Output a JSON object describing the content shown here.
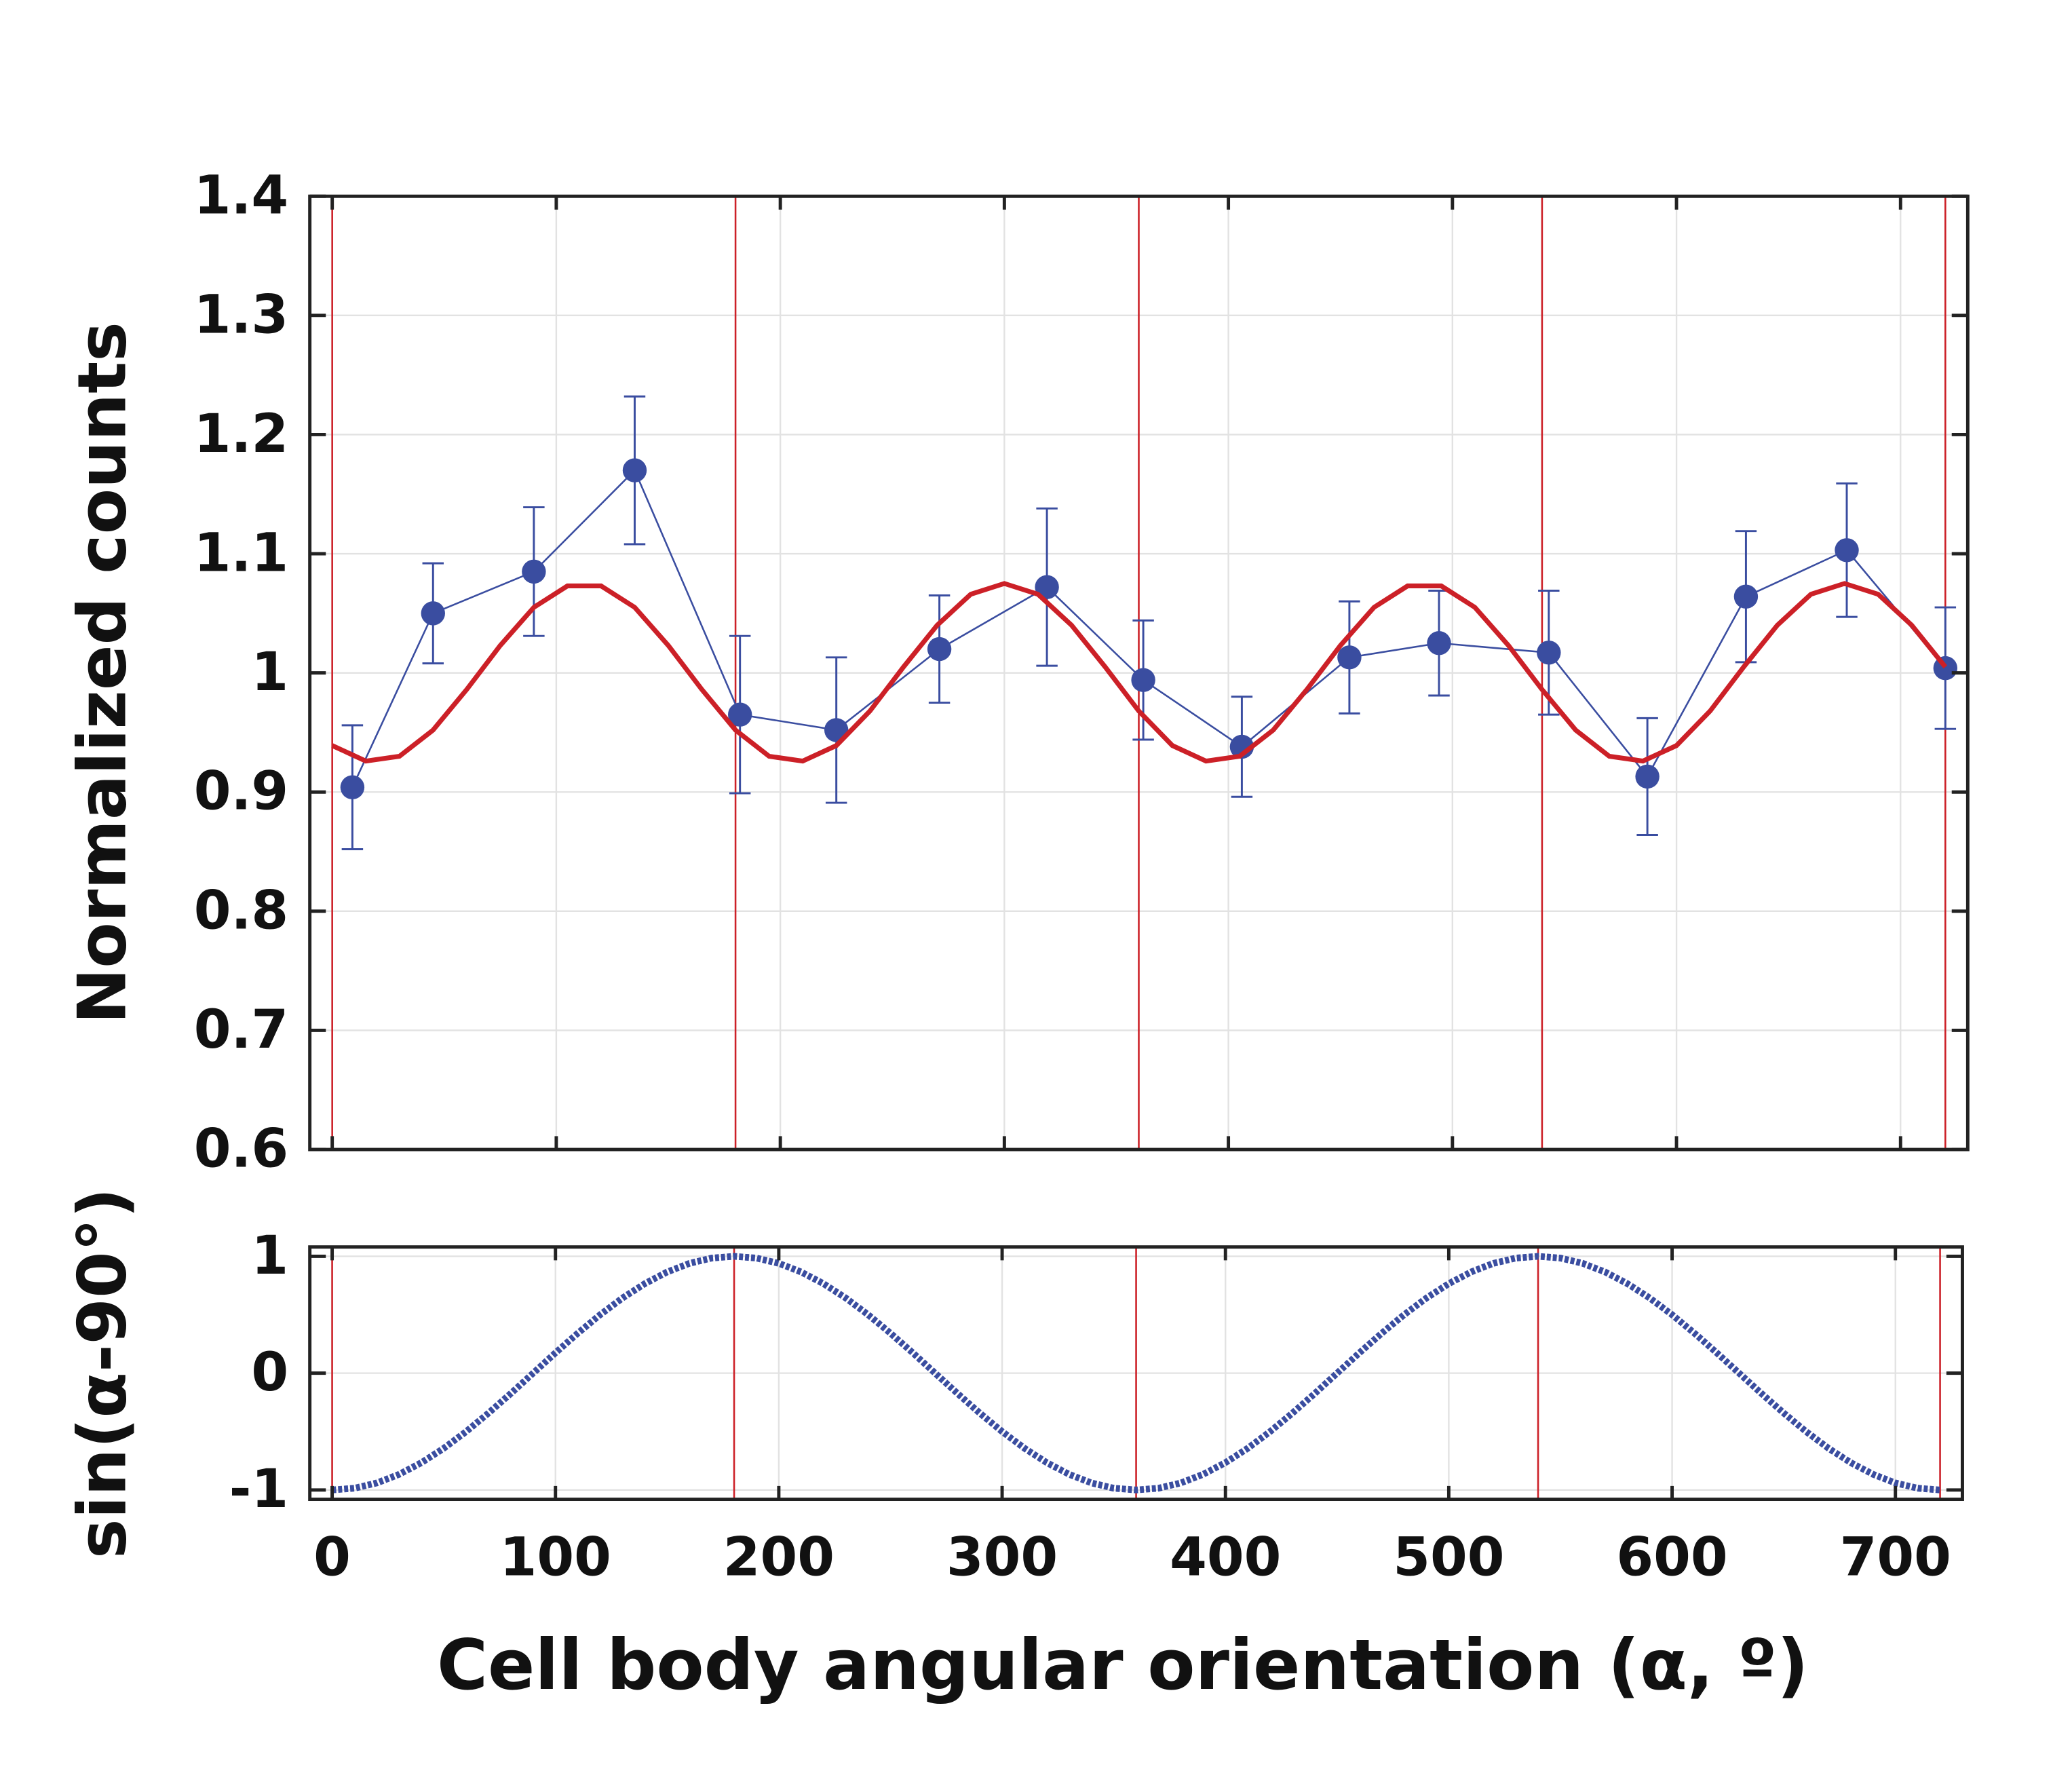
{
  "chart_data": [
    {
      "type": "line",
      "ylabel": "Normalized counts",
      "xlim": [
        -10,
        730
      ],
      "ylim": [
        0.6,
        1.4
      ],
      "xticks": [
        0,
        100,
        200,
        300,
        400,
        500,
        600,
        700
      ],
      "xtick_labels": false,
      "yticks": [
        0.6,
        0.7,
        0.8,
        0.9,
        1,
        1.1,
        1.2,
        1.3,
        1.4
      ],
      "grid": true,
      "vlines": [
        0,
        180,
        360,
        540,
        720
      ],
      "vline_color": "#cc2027",
      "series": [
        {
          "color": "#3a4da0",
          "marker": true,
          "x": [
            9,
            45,
            90,
            135,
            182,
            225,
            271,
            319,
            362,
            406,
            454,
            494,
            543,
            587,
            631,
            676,
            720
          ],
          "values": [
            0.904,
            1.05,
            1.085,
            1.17,
            0.965,
            0.952,
            1.02,
            1.072,
            0.994,
            0.938,
            1.013,
            1.025,
            1.017,
            0.913,
            1.064,
            1.103,
            1.004
          ],
          "errors": [
            0.052,
            0.042,
            0.054,
            0.062,
            0.066,
            0.061,
            0.045,
            0.066,
            0.05,
            0.042,
            0.047,
            0.044,
            0.052,
            0.049,
            0.055,
            0.056,
            0.051
          ]
        },
        {
          "color": "#cc2027",
          "marker": false,
          "x": [
            0,
            15,
            30,
            45,
            60,
            75,
            90,
            105,
            120,
            135,
            150,
            165,
            180,
            195,
            210,
            225,
            240,
            255,
            270,
            285,
            300,
            315,
            330,
            345,
            360,
            375,
            390,
            405,
            420,
            435,
            450,
            465,
            480,
            495,
            510,
            525,
            540,
            555,
            570,
            585,
            600,
            615,
            630,
            645,
            660,
            675,
            690,
            705,
            720
          ],
          "values": [
            0.939,
            0.926,
            0.93,
            0.952,
            0.986,
            1.023,
            1.055,
            1.073,
            1.073,
            1.055,
            1.023,
            0.986,
            0.952,
            0.93,
            0.926,
            0.939,
            0.968,
            1.005,
            1.04,
            1.066,
            1.075,
            1.066,
            1.04,
            1.005,
            0.968,
            0.939,
            0.926,
            0.93,
            0.952,
            0.986,
            1.023,
            1.055,
            1.073,
            1.073,
            1.055,
            1.023,
            0.986,
            0.952,
            0.93,
            0.926,
            0.939,
            0.968,
            1.005,
            1.04,
            1.066,
            1.075,
            1.066,
            1.04,
            1.005
          ]
        }
      ]
    },
    {
      "type": "line",
      "xlabel": "Cell body angular orientation (α, º)",
      "ylabel": "sin(α-90°)",
      "xlim": [
        -10,
        730
      ],
      "ylim": [
        -1.08,
        1.08
      ],
      "xticks": [
        0,
        100,
        200,
        300,
        400,
        500,
        600,
        700
      ],
      "xtick_labels": true,
      "yticks": [
        -1,
        0,
        1
      ],
      "grid": true,
      "vlines": [
        0,
        180,
        360,
        540,
        720
      ],
      "vline_color": "#cc2027",
      "series": [
        {
          "color": "#3a4da0",
          "marker": false,
          "dotted": true,
          "x": [
            0,
            10,
            20,
            30,
            40,
            50,
            60,
            70,
            80,
            90,
            100,
            110,
            120,
            130,
            140,
            150,
            160,
            170,
            180,
            190,
            200,
            210,
            220,
            230,
            240,
            250,
            260,
            270,
            280,
            290,
            300,
            310,
            320,
            330,
            340,
            350,
            360,
            370,
            380,
            390,
            400,
            410,
            420,
            430,
            440,
            450,
            460,
            470,
            480,
            490,
            500,
            510,
            520,
            530,
            540,
            550,
            560,
            570,
            580,
            590,
            600,
            610,
            620,
            630,
            640,
            650,
            660,
            670,
            680,
            690,
            700,
            710,
            720
          ],
          "values": [
            -1,
            -0.985,
            -0.94,
            -0.866,
            -0.766,
            -0.643,
            -0.5,
            -0.342,
            -0.174,
            0,
            0.174,
            0.342,
            0.5,
            0.643,
            0.766,
            0.866,
            0.94,
            0.985,
            1,
            0.985,
            0.94,
            0.866,
            0.766,
            0.643,
            0.5,
            0.342,
            0.174,
            0,
            -0.174,
            -0.342,
            -0.5,
            -0.643,
            -0.766,
            -0.866,
            -0.94,
            -0.985,
            -1,
            -0.985,
            -0.94,
            -0.866,
            -0.766,
            -0.643,
            -0.5,
            -0.342,
            -0.174,
            0,
            0.174,
            0.342,
            0.5,
            0.643,
            0.766,
            0.866,
            0.94,
            0.985,
            1,
            0.985,
            0.94,
            0.866,
            0.766,
            0.643,
            0.5,
            0.342,
            0.174,
            0,
            -0.174,
            -0.342,
            -0.5,
            -0.643,
            -0.766,
            -0.866,
            -0.94,
            -0.985,
            -1
          ]
        }
      ]
    }
  ]
}
